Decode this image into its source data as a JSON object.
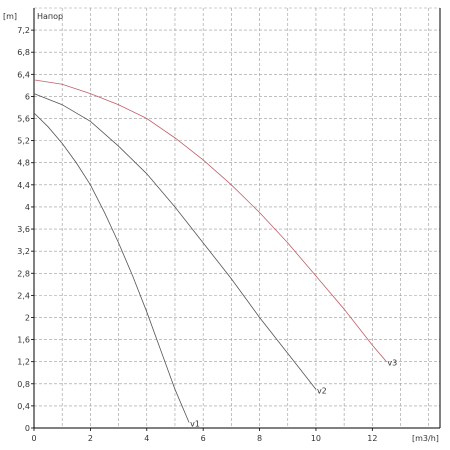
{
  "chart_data": {
    "type": "line",
    "title": "Напор",
    "xlabel": "[m3/h]",
    "ylabel": "[m]",
    "xlim": [
      0,
      14.4
    ],
    "ylim": [
      0,
      7.6
    ],
    "x_ticks": [
      "0",
      "2",
      "4",
      "6",
      "8",
      "10",
      "12"
    ],
    "y_ticks": [
      "0",
      "0,4",
      "0,8",
      "1,2",
      "1,6",
      "2",
      "2,4",
      "2,8",
      "3,2",
      "3,6",
      "4",
      "4,4",
      "4,8",
      "5,2",
      "5,6",
      "6",
      "6,4",
      "6,8",
      "7,2"
    ],
    "grid": true,
    "colors": {
      "curve_1": "#555555",
      "curve_2": "#555555",
      "curve_3": "#c0606a"
    },
    "series": [
      {
        "name": "v1",
        "x": [
          0,
          0.5,
          1,
          1.5,
          2,
          2.5,
          3,
          3.5,
          4,
          4.5,
          5,
          5.5
        ],
        "values": [
          5.7,
          5.45,
          5.15,
          4.8,
          4.4,
          3.9,
          3.35,
          2.75,
          2.1,
          1.4,
          0.7,
          0.1
        ]
      },
      {
        "name": "v2",
        "x": [
          0,
          1,
          2,
          3,
          4,
          5,
          6,
          7,
          8,
          9,
          10
        ],
        "values": [
          6.05,
          5.85,
          5.55,
          5.1,
          4.6,
          4.0,
          3.35,
          2.7,
          2.0,
          1.35,
          0.7
        ]
      },
      {
        "name": "v3",
        "x": [
          0,
          1,
          2,
          3,
          4,
          5,
          6,
          7,
          8,
          9,
          10,
          11,
          12,
          12.5
        ],
        "values": [
          6.3,
          6.22,
          6.05,
          5.85,
          5.6,
          5.25,
          4.85,
          4.4,
          3.9,
          3.35,
          2.75,
          2.15,
          1.5,
          1.2
        ]
      }
    ]
  }
}
